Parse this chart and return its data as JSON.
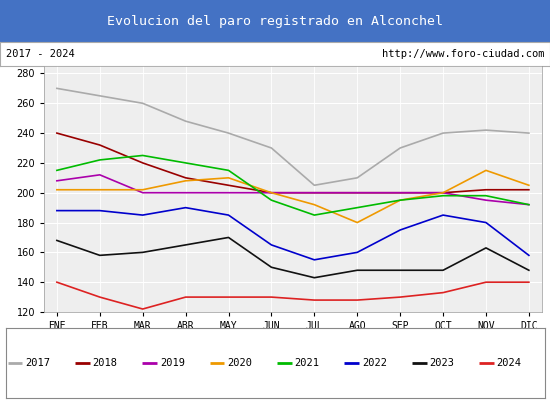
{
  "title": "Evolucion del paro registrado en Alconchel",
  "title_bg": "#4472c4",
  "subtitle_left": "2017 - 2024",
  "subtitle_right": "http://www.foro-ciudad.com",
  "months": [
    "ENE",
    "FEB",
    "MAR",
    "ABR",
    "MAY",
    "JUN",
    "JUL",
    "AGO",
    "SEP",
    "OCT",
    "NOV",
    "DIC"
  ],
  "ylim": [
    120,
    285
  ],
  "yticks": [
    120,
    140,
    160,
    180,
    200,
    220,
    240,
    260,
    280
  ],
  "series": {
    "2017": {
      "color": "#aaaaaa",
      "linewidth": 1.2,
      "values": [
        270,
        265,
        260,
        248,
        240,
        230,
        205,
        210,
        230,
        240,
        242,
        240
      ]
    },
    "2018": {
      "color": "#990000",
      "linewidth": 1.2,
      "values": [
        240,
        232,
        220,
        210,
        205,
        200,
        200,
        200,
        200,
        200,
        202,
        202
      ]
    },
    "2019": {
      "color": "#aa00aa",
      "linewidth": 1.2,
      "values": [
        208,
        212,
        200,
        200,
        200,
        200,
        200,
        200,
        200,
        200,
        195,
        192
      ]
    },
    "2020": {
      "color": "#ee9900",
      "linewidth": 1.2,
      "values": [
        202,
        202,
        202,
        208,
        210,
        200,
        192,
        180,
        195,
        200,
        215,
        205
      ]
    },
    "2021": {
      "color": "#00bb00",
      "linewidth": 1.2,
      "values": [
        215,
        222,
        225,
        220,
        215,
        195,
        185,
        190,
        195,
        198,
        198,
        192
      ]
    },
    "2022": {
      "color": "#0000cc",
      "linewidth": 1.2,
      "values": [
        188,
        188,
        185,
        190,
        185,
        165,
        155,
        160,
        175,
        185,
        180,
        158
      ]
    },
    "2023": {
      "color": "#111111",
      "linewidth": 1.2,
      "values": [
        168,
        158,
        160,
        165,
        170,
        150,
        143,
        148,
        148,
        148,
        163,
        148
      ]
    },
    "2024": {
      "color": "#dd2222",
      "linewidth": 1.2,
      "values": [
        140,
        130,
        122,
        130,
        130,
        130,
        128,
        128,
        130,
        133,
        140,
        140
      ]
    }
  }
}
